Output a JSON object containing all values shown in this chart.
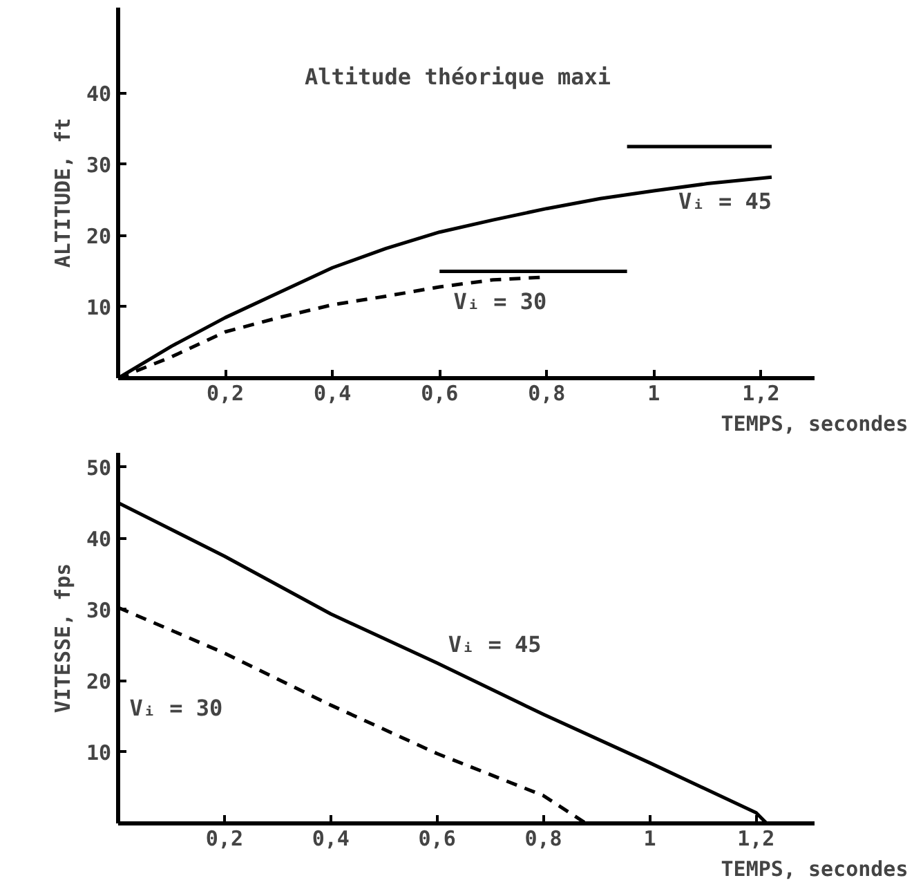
{
  "chart_data": [
    {
      "type": "line",
      "ylabel": "ALTITUDE, ft",
      "xlabel": "TEMPS, secondes",
      "xlim": [
        0,
        1.3
      ],
      "ylim": [
        0,
        52
      ],
      "xticks": [
        {
          "value": 0.2,
          "label": "0,2"
        },
        {
          "value": 0.4,
          "label": "0,4"
        },
        {
          "value": 0.6,
          "label": "0,6"
        },
        {
          "value": 0.8,
          "label": "0,8"
        },
        1,
        {
          "value": 1.2,
          "label": "1,2"
        }
      ],
      "yticks": [
        10,
        20,
        30,
        40
      ],
      "grid": false,
      "series": [
        {
          "name": "Vᵢ = 45",
          "color": "#000000",
          "line_style": "solid",
          "x": [
            0,
            0.1,
            0.2,
            0.3,
            0.4,
            0.5,
            0.6,
            0.7,
            0.8,
            0.9,
            1.0,
            1.1,
            1.22
          ],
          "values": [
            0,
            4.5,
            8.5,
            12,
            15.5,
            18.2,
            20.5,
            22.2,
            23.8,
            25.2,
            26.3,
            27.3,
            28.2
          ]
        },
        {
          "name": "Vᵢ = 30",
          "color": "#000000",
          "line_style": "dashed",
          "x": [
            0,
            0.1,
            0.2,
            0.3,
            0.4,
            0.5,
            0.6,
            0.7,
            0.8
          ],
          "values": [
            0,
            3,
            6.5,
            8.5,
            10.3,
            11.5,
            12.8,
            13.8,
            14.2
          ]
        },
        {
          "color": "#000000",
          "line_style": "solid",
          "x": [
            0.6,
            0.95
          ],
          "values": [
            15,
            15
          ]
        },
        {
          "color": "#000000",
          "line_style": "solid",
          "x": [
            0.95,
            1.22
          ],
          "values": [
            32.5,
            32.5
          ]
        }
      ],
      "annotations": [
        "Altitude théorique maxi"
      ]
    },
    {
      "type": "line",
      "ylabel": "VITESSE, fps",
      "xlabel": "TEMPS, secondes",
      "xlim": [
        0,
        1.31
      ],
      "ylim": [
        0,
        52
      ],
      "xticks": [
        {
          "value": 0.2,
          "label": "0,2"
        },
        {
          "value": 0.4,
          "label": "0,4"
        },
        {
          "value": 0.6,
          "label": "0,6"
        },
        {
          "value": 0.8,
          "label": "0,8"
        },
        1,
        {
          "value": 1.2,
          "label": "1,2"
        }
      ],
      "yticks": [
        10,
        20,
        30,
        40,
        50
      ],
      "grid": false,
      "series": [
        {
          "name": "Vᵢ = 45",
          "color": "#000000",
          "line_style": "solid",
          "x": [
            0,
            0.2,
            0.4,
            0.6,
            0.8,
            1.0,
            1.2,
            1.22
          ],
          "values": [
            45,
            37.5,
            29.4,
            22.5,
            15.3,
            8.5,
            1.5,
            0
          ]
        },
        {
          "name": "Vᵢ = 30",
          "color": "#000000",
          "line_style": "dashed",
          "x": [
            0,
            0.2,
            0.4,
            0.6,
            0.8,
            0.88
          ],
          "values": [
            30.3,
            23.9,
            16.6,
            9.8,
            3.9,
            0
          ]
        }
      ]
    }
  ]
}
